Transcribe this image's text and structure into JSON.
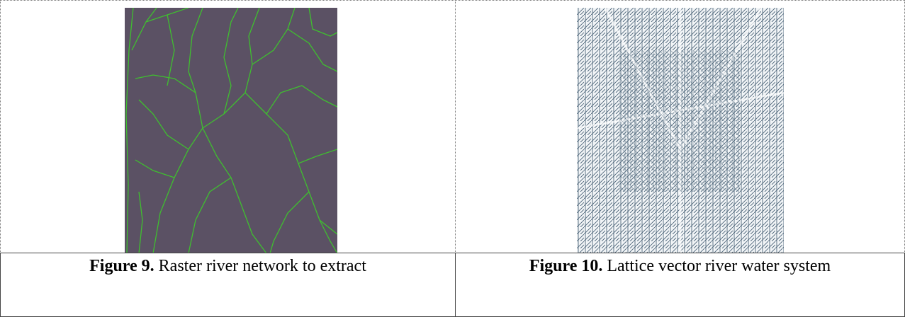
{
  "figures": [
    {
      "label": "Figure 9.",
      "caption": "Raster river network to extract"
    },
    {
      "label": "Figure 10.",
      "caption": "Lattice vector river water system"
    }
  ]
}
